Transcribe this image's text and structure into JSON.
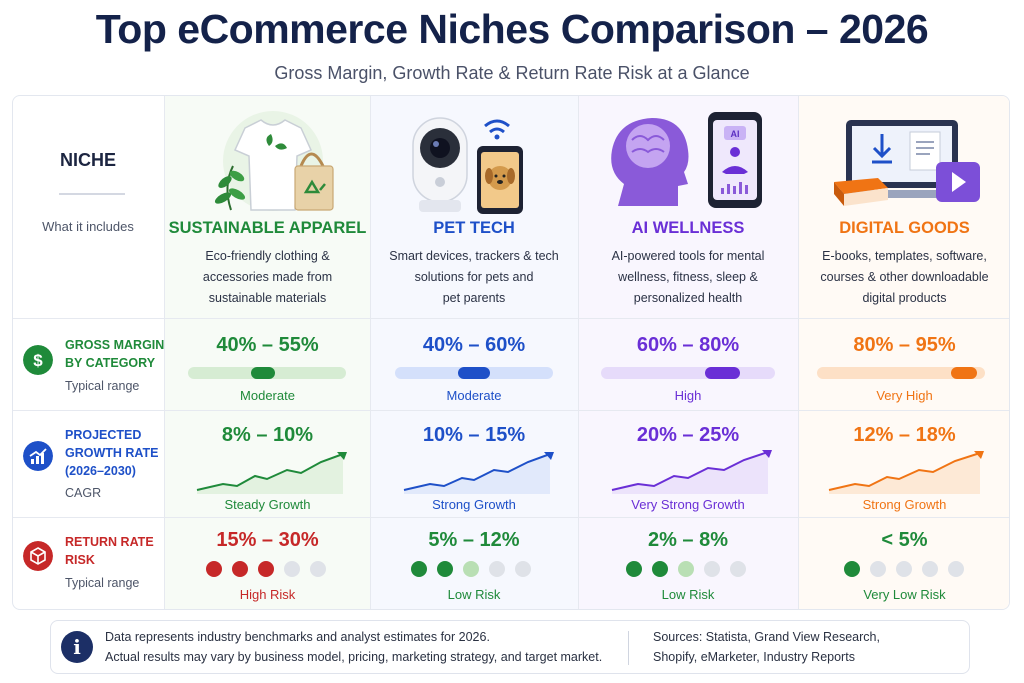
{
  "title": "Top eCommerce Niches Comparison – 2026",
  "subtitle": "Gross Margin, Growth Rate & Return Rate Risk at a Glance",
  "header": {
    "niche_label": "NICHE",
    "niche_sub": "What it includes"
  },
  "categories": [
    {
      "name": "SUSTAINABLE APPAREL",
      "color": "#1f8a3a",
      "desc": [
        "Eco-friendly clothing &",
        "accessories made from",
        "sustainable materials"
      ],
      "icons": [
        "tshirt-icon",
        "leaf-icon",
        "recycle-bag-icon"
      ]
    },
    {
      "name": "PET TECH",
      "color": "#1e50c8",
      "desc": [
        "Smart devices, trackers & tech",
        "solutions for pets and",
        "pet parents"
      ],
      "icons": [
        "pet-camera-icon",
        "wifi-icon",
        "smartphone-dog-icon"
      ]
    },
    {
      "name": "AI WELLNESS",
      "color": "#6a2fd6",
      "desc": [
        "AI-powered tools for mental",
        "wellness, fitness, sleep &",
        "personalized health"
      ],
      "icons": [
        "brain-head-icon",
        "phone-meditation-icon"
      ]
    },
    {
      "name": "DIGITAL GOODS",
      "color": "#f07414",
      "desc": [
        "E-books, templates, software,",
        "courses & other downloadable",
        "digital products"
      ],
      "icons": [
        "laptop-download-icon",
        "book-icon",
        "play-icon",
        "document-icon"
      ]
    }
  ],
  "rows": {
    "margin": {
      "title": [
        "GROSS MARGIN",
        "BY CATEGORY"
      ],
      "note": "Typical range",
      "icon": "dollar-icon",
      "color": "#1f8a3a",
      "values": [
        "40% – 55%",
        "40% – 60%",
        "60% – 80%",
        "80% – 95%"
      ],
      "labels": [
        "Moderate",
        "Moderate",
        "High",
        "Very High"
      ],
      "ranges": [
        [
          40,
          55
        ],
        [
          40,
          60
        ],
        [
          60,
          80
        ],
        [
          80,
          95
        ]
      ]
    },
    "growth": {
      "title": [
        "PROJECTED",
        "GROWTH RATE",
        "(2026–2030)"
      ],
      "note": "CAGR",
      "icon": "growth-chart-icon",
      "color": "#1e50c8",
      "values": [
        "8% – 10%",
        "10% – 15%",
        "20% – 25%",
        "12% – 18%"
      ],
      "labels": [
        "Steady Growth",
        "Strong Growth",
        "Very Strong Growth",
        "Strong Growth"
      ]
    },
    "returns": {
      "title": [
        "RETURN RATE",
        "RISK"
      ],
      "note": "Typical range",
      "icon": "box-icon",
      "color": "#c62828",
      "values": [
        "15% – 30%",
        "5% – 12%",
        "2% – 8%",
        "< 5%"
      ],
      "labels": [
        "High Risk",
        "Low Risk",
        "Low Risk",
        "Very Low Risk"
      ],
      "risk_levels": [
        3,
        2,
        2,
        1
      ],
      "risk_half": [
        0,
        1,
        1,
        0
      ]
    }
  },
  "colors": {
    "green": "#1f8a3a",
    "blue": "#1e50c8",
    "purple": "#6a2fd6",
    "orange": "#f07414",
    "red": "#c62828",
    "navy": "#14224a"
  },
  "footer": {
    "note": [
      "Data represents industry benchmarks and analyst estimates for 2026.",
      "Actual results may vary by business model, pricing, marketing strategy, and target market."
    ],
    "sources": [
      "Sources: Statista, Grand View Research,",
      "Shopify, eMarketer, Industry Reports"
    ],
    "icon": "info-icon"
  }
}
